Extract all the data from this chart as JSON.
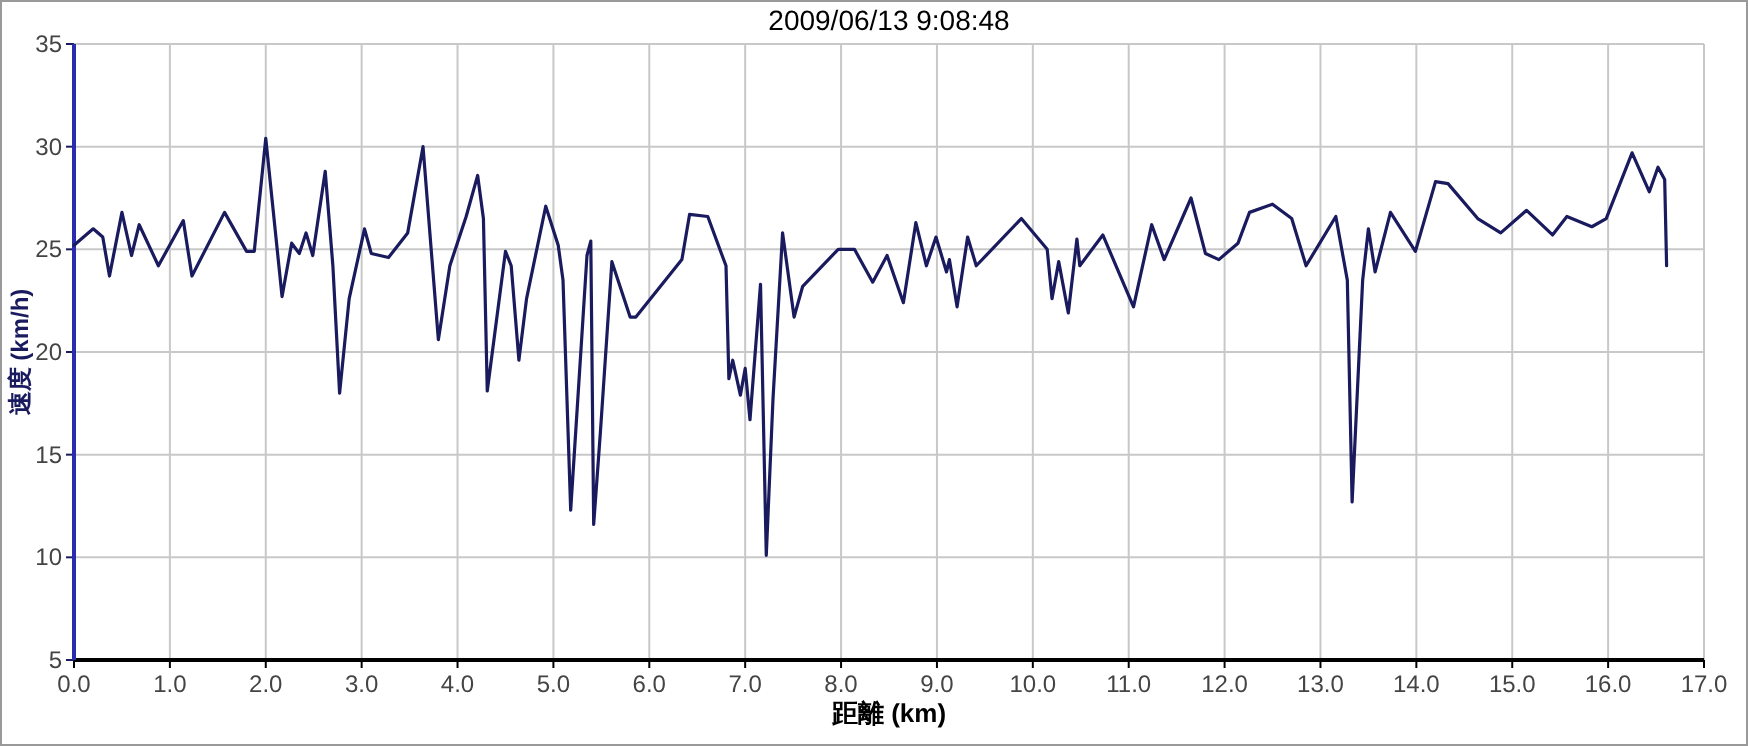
{
  "chart_data": {
    "type": "line",
    "title": "2009/06/13 9:08:48",
    "xlabel": "距離 (km)",
    "ylabel": "速度 (km/h)",
    "xlim": [
      0,
      17
    ],
    "ylim": [
      5,
      35
    ],
    "xticks": [
      {
        "value": 0,
        "label": "0.0"
      },
      {
        "value": 1,
        "label": "1.0"
      },
      {
        "value": 2,
        "label": "2.0"
      },
      {
        "value": 3,
        "label": "3.0"
      },
      {
        "value": 4,
        "label": "4.0"
      },
      {
        "value": 5,
        "label": "5.0"
      },
      {
        "value": 6,
        "label": "6.0"
      },
      {
        "value": 7,
        "label": "7.0"
      },
      {
        "value": 8,
        "label": "8.0"
      },
      {
        "value": 9,
        "label": "9.0"
      },
      {
        "value": 10,
        "label": "10.0"
      },
      {
        "value": 11,
        "label": "11.0"
      },
      {
        "value": 12,
        "label": "12.0"
      },
      {
        "value": 13,
        "label": "13.0"
      },
      {
        "value": 14,
        "label": "14.0"
      },
      {
        "value": 15,
        "label": "15.0"
      },
      {
        "value": 16,
        "label": "16.0"
      },
      {
        "value": 17,
        "label": "17.0"
      }
    ],
    "yticks": [
      5,
      10,
      15,
      20,
      25,
      30,
      35
    ],
    "grid": true,
    "series": [
      {
        "color": "#1a1a5e",
        "x": [
          0,
          0.2,
          0.3,
          0.37,
          0.5,
          0.6,
          0.68,
          0.88,
          1.14,
          1.23,
          1.57,
          1.8,
          1.88,
          2.0,
          2.17,
          2.27,
          2.35,
          2.42,
          2.49,
          2.62,
          2.7,
          2.77,
          2.87,
          3.03,
          3.1,
          3.28,
          3.48,
          3.64,
          3.8,
          3.92,
          4.09,
          4.21,
          4.27,
          4.31,
          4.5,
          4.56,
          4.64,
          4.72,
          4.92,
          5.05,
          5.1,
          5.18,
          5.29,
          5.35,
          5.39,
          5.42,
          5.49,
          5.61,
          5.8,
          5.86,
          6.34,
          6.42,
          6.61,
          6.76,
          6.8,
          6.83,
          6.87,
          6.95,
          7.0,
          7.05,
          7.16,
          7.22,
          7.29,
          7.39,
          7.51,
          7.6,
          7.97,
          8.14,
          8.33,
          8.48,
          8.65,
          8.78,
          8.89,
          8.99,
          9.1,
          9.13,
          9.21,
          9.32,
          9.41,
          9.88,
          10.15,
          10.2,
          10.27,
          10.37,
          10.46,
          10.49,
          10.73,
          11.05,
          11.24,
          11.37,
          11.65,
          11.8,
          11.94,
          12.14,
          12.26,
          12.5,
          12.7,
          12.85,
          13.16,
          13.28,
          13.33,
          13.44,
          13.5,
          13.57,
          13.73,
          13.99,
          14.2,
          14.33,
          14.64,
          14.88,
          15.15,
          15.42,
          15.57,
          15.83,
          15.98,
          16.25,
          16.43,
          16.52,
          16.59,
          16.61
        ],
        "values": [
          25.2,
          26.0,
          25.6,
          23.7,
          26.8,
          24.7,
          26.2,
          24.2,
          26.4,
          23.7,
          26.8,
          24.9,
          24.9,
          30.4,
          22.7,
          25.3,
          24.8,
          25.8,
          24.7,
          28.8,
          24.2,
          18.0,
          22.6,
          26.0,
          24.8,
          24.6,
          25.8,
          30.0,
          20.6,
          24.2,
          26.6,
          28.6,
          26.5,
          18.1,
          24.9,
          24.2,
          19.6,
          22.6,
          27.1,
          25.2,
          23.5,
          12.3,
          20.3,
          24.7,
          25.4,
          11.6,
          16.1,
          24.4,
          21.7,
          21.7,
          24.5,
          26.7,
          26.6,
          24.7,
          24.2,
          18.7,
          19.6,
          17.9,
          19.2,
          16.7,
          23.3,
          10.1,
          17.7,
          25.8,
          21.7,
          23.2,
          25.0,
          25.0,
          23.4,
          24.7,
          22.4,
          26.3,
          24.2,
          25.6,
          23.9,
          24.5,
          22.2,
          25.6,
          24.2,
          26.5,
          25.0,
          22.6,
          24.4,
          21.9,
          25.5,
          24.2,
          25.7,
          22.2,
          26.2,
          24.5,
          27.5,
          24.8,
          24.5,
          25.3,
          26.8,
          27.2,
          26.5,
          24.2,
          26.6,
          23.5,
          12.7,
          23.5,
          26.0,
          23.9,
          26.8,
          24.9,
          28.3,
          28.2,
          26.5,
          25.8,
          26.9,
          25.7,
          26.6,
          26.1,
          26.5,
          29.7,
          27.8,
          29.0,
          28.4,
          24.2
        ]
      }
    ]
  }
}
